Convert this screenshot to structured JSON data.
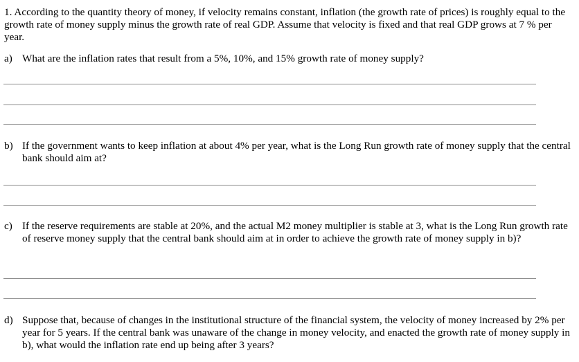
{
  "intro": {
    "number": "1.",
    "text": "According to the quantity theory of money, if velocity remains constant, inflation (the growth rate of prices) is roughly equal to the growth rate of money supply minus the growth rate of real GDP.  Assume that velocity is fixed and that real GDP grows at 7 % per year."
  },
  "questions": [
    {
      "label": "a)",
      "text": "What are the inflation rates that result from a 5%, 10%, and 15% growth rate of money supply?"
    },
    {
      "label": "b)",
      "text": "If the government wants to keep inflation at about 4% per year, what is the Long Run growth rate of money supply that the central bank should aim at?"
    },
    {
      "label": "c)",
      "text": "If the reserve requirements are stable at 20%, and the actual M2 money multiplier is stable at 3, what is the Long Run growth rate of reserve money supply that the central bank should aim at in order to achieve the growth rate of money supply in b)?"
    },
    {
      "label": "d)",
      "text": "Suppose that, because of changes in the institutional structure of the financial system, the velocity of money increased by 2% per year for 5 years. If the central bank was unaware of the change in money velocity, and enacted the growth rate of money supply in b), what would the inflation rate end up being after 3 years?"
    }
  ]
}
